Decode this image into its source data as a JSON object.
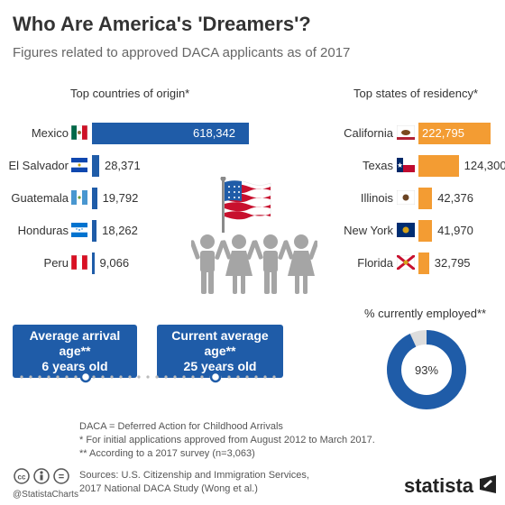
{
  "title": "Who Are America's 'Dreamers'?",
  "subtitle": "Figures related to approved DACA applicants as of 2017",
  "colors": {
    "blue": "#1f5ca8",
    "orange": "#f39c33",
    "gray": "#a5a5a5",
    "lightgray": "#dddddd"
  },
  "chart_data": [
    {
      "type": "bar",
      "title": "Top countries of origin*",
      "categories": [
        "Mexico",
        "El Salvador",
        "Guatemala",
        "Honduras",
        "Peru"
      ],
      "values": [
        618342,
        28371,
        19792,
        18262,
        9066
      ],
      "value_labels": [
        "618,342",
        "28,371",
        "19,792",
        "18,262",
        "9,066"
      ],
      "color": "#1f5ca8"
    },
    {
      "type": "bar",
      "title": "Top states of residency*",
      "categories": [
        "California",
        "Texas",
        "Illinois",
        "New York",
        "Florida"
      ],
      "values": [
        222795,
        124300,
        42376,
        41970,
        32795
      ],
      "value_labels": [
        "222,795",
        "124,300",
        "42,376",
        "41,970",
        "32,795"
      ],
      "color": "#f39c33"
    },
    {
      "type": "pie",
      "title": "% currently employed**",
      "values": [
        93,
        7
      ],
      "value_label": "93%",
      "colors": [
        "#1f5ca8",
        "#dddddd"
      ]
    }
  ],
  "callouts": {
    "arrival": {
      "line1": "Average arrival age**",
      "line2": "6 years old"
    },
    "current": {
      "line1": "Current average age**",
      "line2": "25 years old"
    }
  },
  "notes": {
    "line1": "DACA = Deferred Action for Childhood Arrivals",
    "line2": "*   For initial applications approved from August 2012 to March 2017.",
    "line3": "** According to a 2017 survey (n=3,063)"
  },
  "sources": {
    "line1": "Sources: U.S. Citizenship and Immigration Services,",
    "line2": "2017 National DACA Study (Wong et al.)"
  },
  "footer": {
    "handle": "@StatistaCharts",
    "brand": "statista"
  },
  "icons": [
    "us-flag-icon",
    "children-icon",
    "mexico-flag-icon",
    "el-salvador-flag-icon",
    "guatemala-flag-icon",
    "honduras-flag-icon",
    "peru-flag-icon",
    "california-flag-icon",
    "texas-flag-icon",
    "illinois-flag-icon",
    "new-york-flag-icon",
    "florida-flag-icon",
    "cc-license-icon",
    "statista-logo-icon"
  ]
}
